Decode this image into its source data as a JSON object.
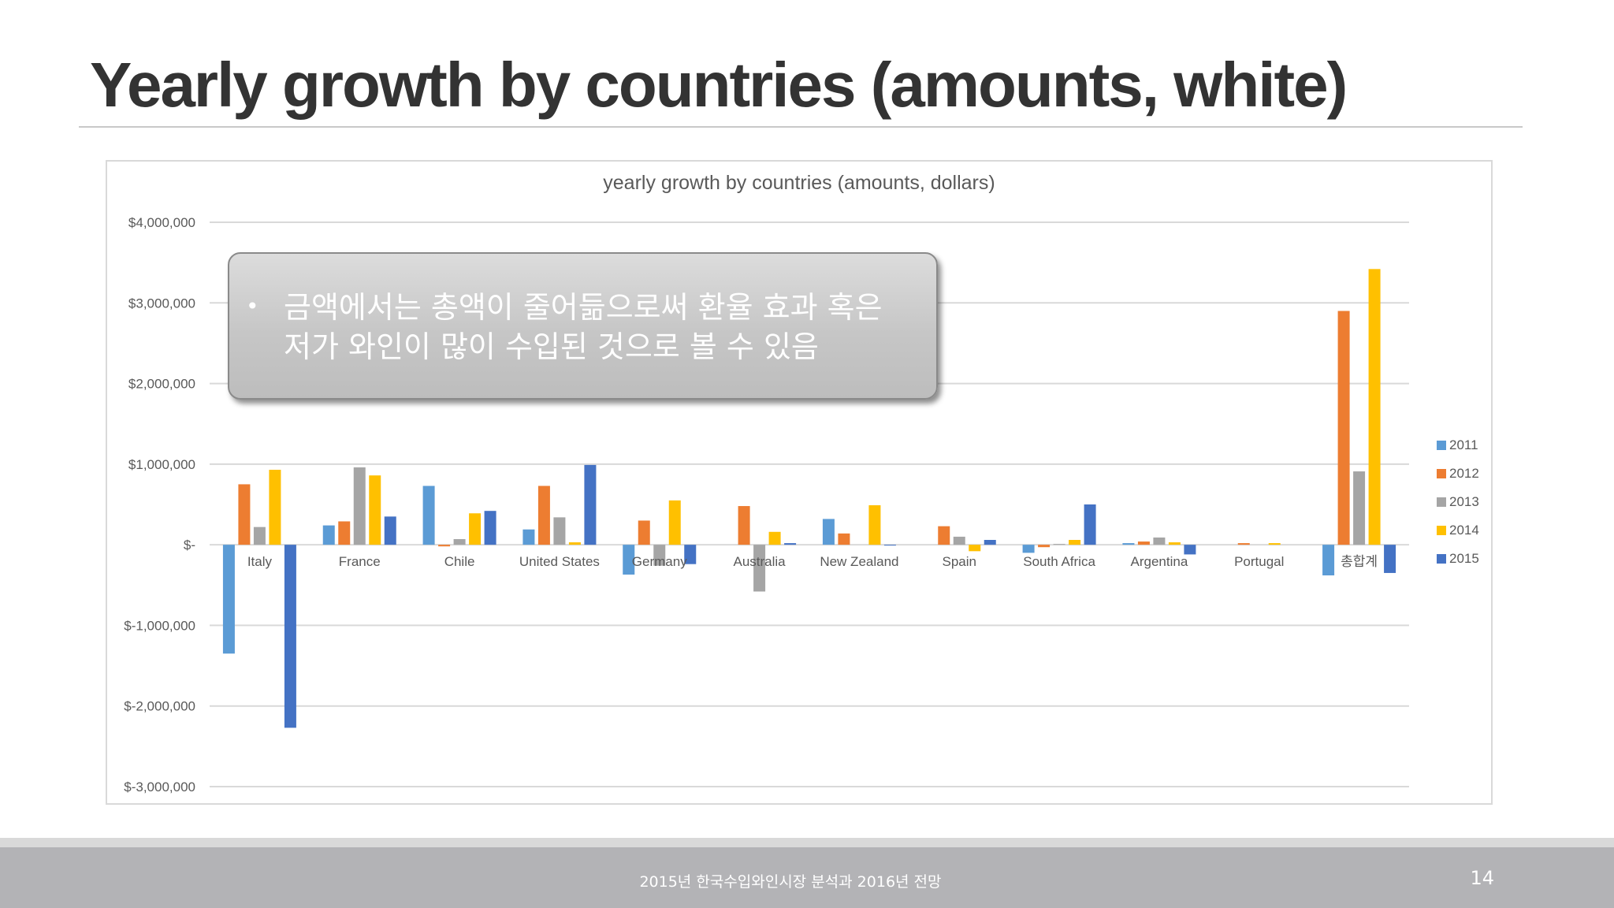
{
  "slide": {
    "title": "Yearly growth by countries (amounts, white)",
    "callout_text": "금액에서는 총액이 줄어듦으로써 환율 효과 혹은 저가 와인이 많이 수입된 것으로 볼 수 있음",
    "footer_text": "2015년 한국수입와인시장 분석과 2016년 전망",
    "page_number": "14"
  },
  "chart_data": {
    "type": "bar",
    "title": "yearly growth by countries (amounts, dollars)",
    "xlabel": "",
    "ylabel": "",
    "ylim": [
      -3000000,
      4000000
    ],
    "yticks": [
      4000000,
      3000000,
      2000000,
      1000000,
      0,
      -1000000,
      -2000000,
      -3000000
    ],
    "ytick_labels": [
      "$4,000,000",
      "$3,000,000",
      "$2,000,000",
      "$1,000,000",
      "$-",
      "$-1,000,000",
      "$-2,000,000",
      "$-3,000,000"
    ],
    "categories": [
      "Italy",
      "France",
      "Chile",
      "United States",
      "Germany",
      "Australia",
      "New Zealand",
      "Spain",
      "South Africa",
      "Argentina",
      "Portugal",
      "총합계"
    ],
    "series": [
      {
        "name": "2011",
        "color": "#5b9bd5",
        "values": [
          -1350000,
          240000,
          730000,
          190000,
          -370000,
          0,
          320000,
          0,
          -100000,
          20000,
          0,
          -380000
        ]
      },
      {
        "name": "2012",
        "color": "#ed7d31",
        "values": [
          750000,
          290000,
          -20000,
          730000,
          300000,
          480000,
          140000,
          230000,
          -30000,
          40000,
          20000,
          2900000
        ]
      },
      {
        "name": "2013",
        "color": "#a5a5a5",
        "values": [
          220000,
          960000,
          70000,
          340000,
          -260000,
          -580000,
          0,
          100000,
          10000,
          90000,
          0,
          910000
        ]
      },
      {
        "name": "2014",
        "color": "#ffc000",
        "values": [
          930000,
          860000,
          390000,
          30000,
          550000,
          160000,
          490000,
          -80000,
          60000,
          30000,
          20000,
          3420000
        ]
      },
      {
        "name": "2015",
        "color": "#4472c4",
        "values": [
          -2270000,
          350000,
          420000,
          990000,
          -240000,
          20000,
          -10000,
          60000,
          500000,
          -120000,
          0,
          -350000
        ]
      }
    ],
    "grid": true,
    "legend_position": "right"
  }
}
